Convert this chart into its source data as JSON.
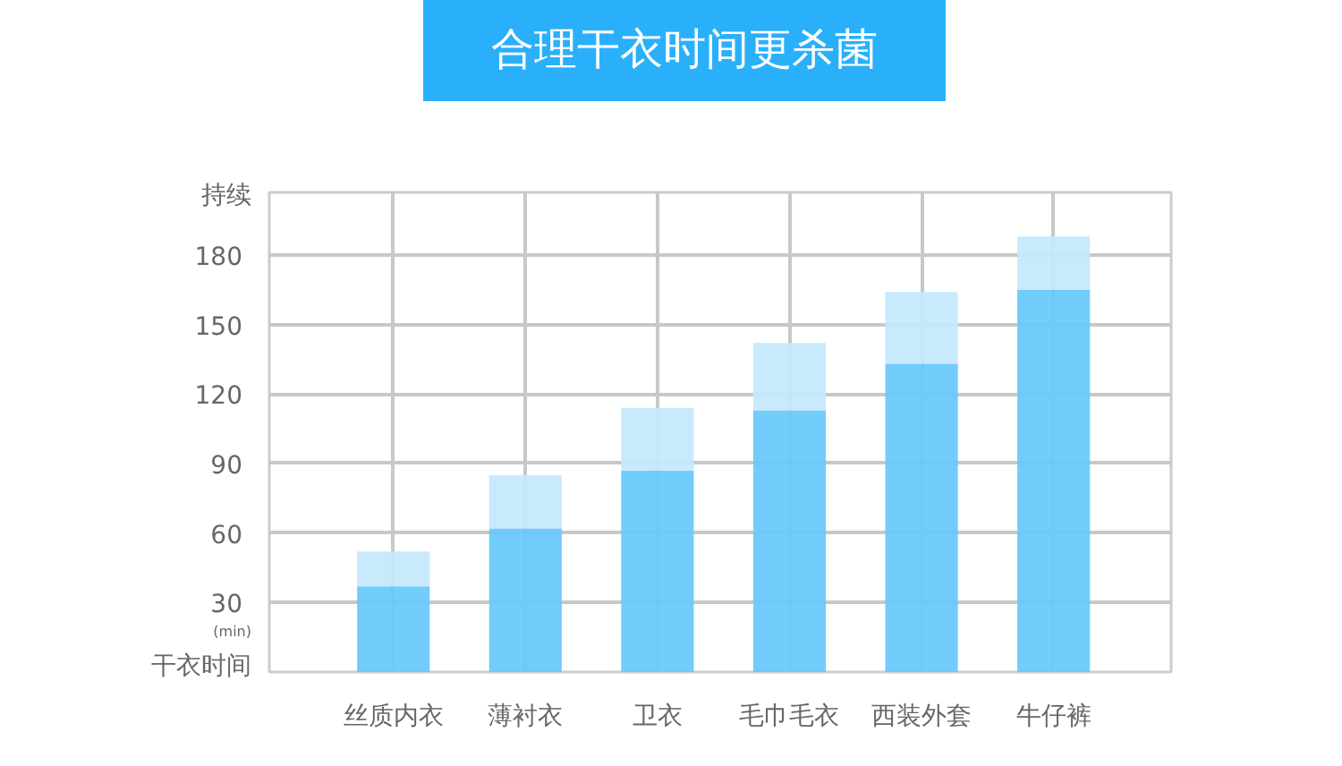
{
  "chart_data": {
    "type": "bar",
    "title": "合理干衣时间更杀菌",
    "categories": [
      "丝质内衣",
      "薄衬衣",
      "卫衣",
      "毛巾毛衣",
      "西装外套",
      "牛仔裤"
    ],
    "stacked": true,
    "series": [
      {
        "color": "#66c8fc",
        "values": [
          37,
          62,
          87,
          113,
          133,
          165
        ]
      },
      {
        "color": "#c4e8fd",
        "values": [
          15,
          23,
          27,
          29,
          31,
          23
        ]
      }
    ],
    "ylim": [
      0,
      207
    ],
    "yticks": [
      30,
      60,
      90,
      120,
      150,
      180
    ],
    "grid": true,
    "annotations": [
      "持续",
      "(min)",
      "干衣时间"
    ]
  }
}
